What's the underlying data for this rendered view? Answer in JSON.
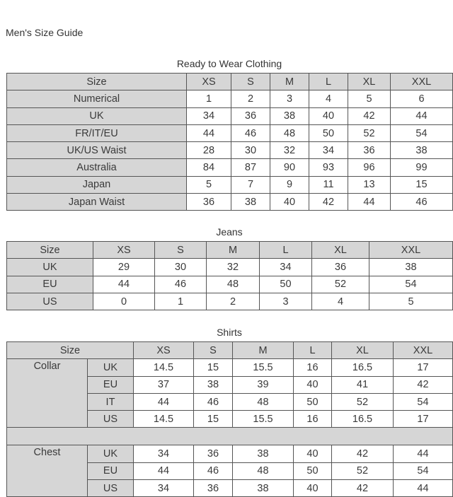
{
  "page_title": "Men's Size Guide",
  "colors": {
    "header_bg": "#d6d6d6",
    "border": "#555555"
  },
  "ready_to_wear": {
    "caption": "Ready to Wear Clothing",
    "header": [
      "Size",
      "XS",
      "S",
      "M",
      "L",
      "XL",
      "XXL"
    ],
    "rows": [
      [
        "Numerical",
        "1",
        "2",
        "3",
        "4",
        "5",
        "6"
      ],
      [
        "UK",
        "34",
        "36",
        "38",
        "40",
        "42",
        "44"
      ],
      [
        "FR/IT/EU",
        "44",
        "46",
        "48",
        "50",
        "52",
        "54"
      ],
      [
        "UK/US Waist",
        "28",
        "30",
        "32",
        "34",
        "36",
        "38"
      ],
      [
        "Australia",
        "84",
        "87",
        "90",
        "93",
        "96",
        "99"
      ],
      [
        "Japan",
        "5",
        "7",
        "9",
        "11",
        "13",
        "15"
      ],
      [
        "Japan Waist",
        "36",
        "38",
        "40",
        "42",
        "44",
        "46"
      ]
    ]
  },
  "jeans": {
    "caption": "Jeans",
    "header": [
      "Size",
      "XS",
      "S",
      "M",
      "L",
      "XL",
      "XXL"
    ],
    "rows": [
      [
        "UK",
        "29",
        "30",
        "32",
        "34",
        "36",
        "38"
      ],
      [
        "EU",
        "44",
        "46",
        "48",
        "50",
        "52",
        "54"
      ],
      [
        "US",
        "0",
        "1",
        "2",
        "3",
        "4",
        "5"
      ]
    ]
  },
  "shirts": {
    "caption": "Shirts",
    "header": [
      "Size",
      "XS",
      "S",
      "M",
      "L",
      "XL",
      "XXL"
    ],
    "groups": [
      {
        "label": "Collar",
        "rows": [
          [
            "UK",
            "14.5",
            "15",
            "15.5",
            "16",
            "16.5",
            "17"
          ],
          [
            "EU",
            "37",
            "38",
            "39",
            "40",
            "41",
            "42"
          ],
          [
            "IT",
            "44",
            "46",
            "48",
            "50",
            "52",
            "54"
          ],
          [
            "US",
            "14.5",
            "15",
            "15.5",
            "16",
            "16.5",
            "17"
          ]
        ]
      },
      {
        "label": "Chest",
        "rows": [
          [
            "UK",
            "34",
            "36",
            "38",
            "40",
            "42",
            "44"
          ],
          [
            "EU",
            "44",
            "46",
            "48",
            "50",
            "52",
            "54"
          ],
          [
            "US",
            "34",
            "36",
            "38",
            "40",
            "42",
            "44"
          ]
        ]
      }
    ]
  }
}
